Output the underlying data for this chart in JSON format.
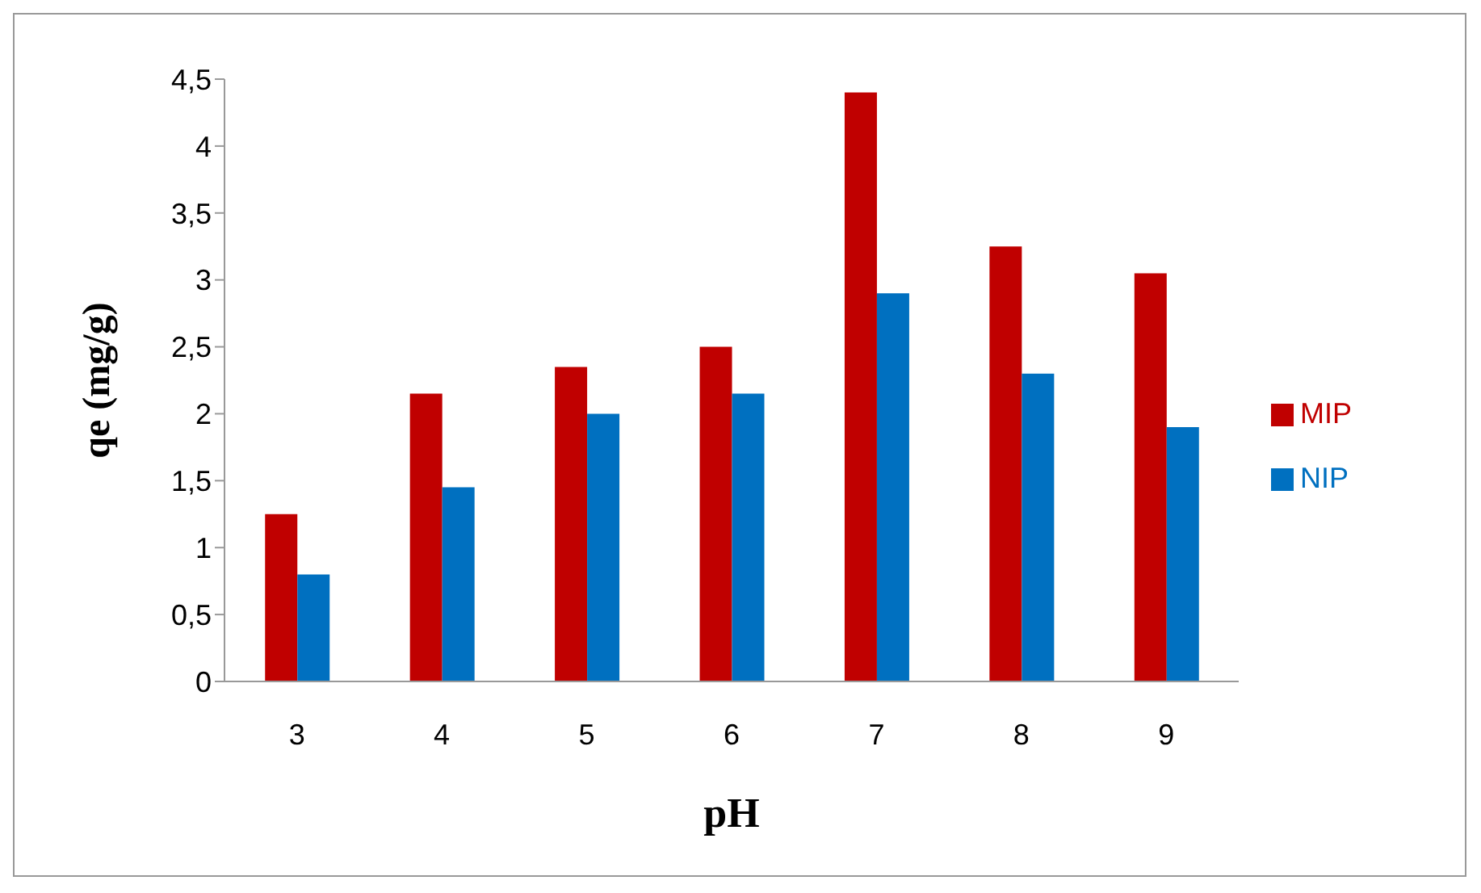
{
  "chart_data": {
    "type": "bar",
    "xlabel": "pH",
    "ylabel": "qe (mg/g)",
    "categories": [
      "3",
      "4",
      "5",
      "6",
      "7",
      "8",
      "9"
    ],
    "series": [
      {
        "name": "MIP",
        "color": "#c00000",
        "values": [
          1.25,
          2.15,
          2.35,
          2.5,
          4.4,
          3.25,
          3.05
        ]
      },
      {
        "name": "NIP",
        "color": "#0070c0",
        "values": [
          0.8,
          1.45,
          2.0,
          2.15,
          2.9,
          2.3,
          1.9
        ]
      }
    ],
    "ylim": [
      0,
      4.5
    ],
    "yticks": [
      0,
      {
        "value": 0.5,
        "label": "0,5"
      },
      1,
      {
        "value": 1.5,
        "label": "1,5"
      },
      2,
      {
        "value": 2.5,
        "label": "2,5"
      },
      3,
      {
        "value": 3.5,
        "label": "3,5"
      },
      4,
      {
        "value": 4.5,
        "label": "4,5"
      }
    ],
    "grid": false,
    "legend": "right"
  }
}
